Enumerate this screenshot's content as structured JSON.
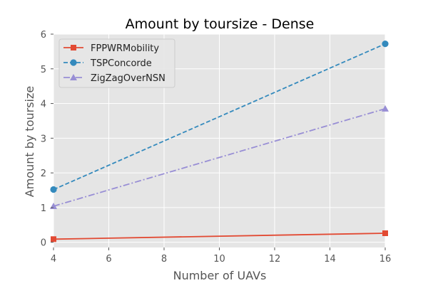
{
  "chart_data": {
    "type": "line",
    "title": "Amount by toursize - Dense",
    "xlabel": "Number of UAVs",
    "ylabel": "Amount by toursize",
    "xlim": [
      4,
      16
    ],
    "ylim": [
      -0.15,
      6
    ],
    "xticks": [
      4,
      6,
      8,
      10,
      12,
      14,
      16
    ],
    "yticks": [
      0,
      1,
      2,
      3,
      4,
      5,
      6
    ],
    "grid": true,
    "legend_position": "upper-left",
    "background": "#e5e5e5",
    "series": [
      {
        "name": "FPPWRMobility",
        "x": [
          4,
          16
        ],
        "y": [
          0.09,
          0.26
        ],
        "color": "#e24a33",
        "linestyle": "solid",
        "marker": "square"
      },
      {
        "name": "TSPConcorde",
        "x": [
          4,
          16
        ],
        "y": [
          1.52,
          5.72
        ],
        "color": "#348abd",
        "linestyle": "dashed",
        "marker": "circle"
      },
      {
        "name": "ZigZagOverNSN",
        "x": [
          4,
          16
        ],
        "y": [
          1.04,
          3.85
        ],
        "color": "#988ed5",
        "linestyle": "dashdot",
        "marker": "triangle"
      }
    ]
  }
}
